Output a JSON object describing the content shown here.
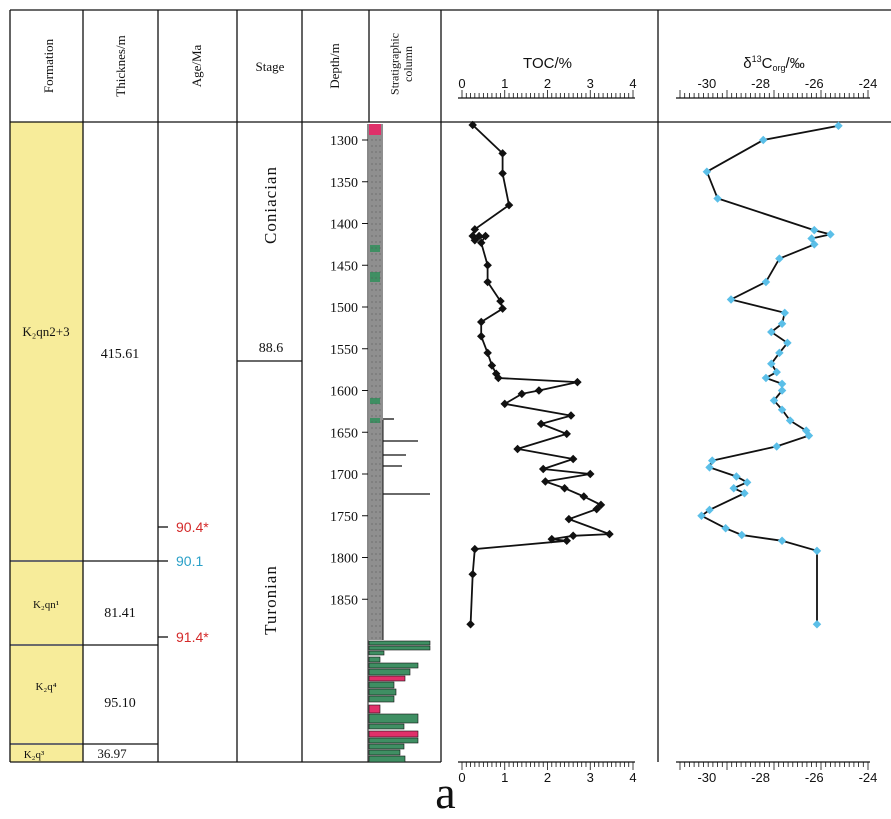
{
  "figure_label": "a",
  "headers": {
    "formation": "Formation",
    "thickness": "Thicknes/m",
    "age": "Age/Ma",
    "stage": "Stage",
    "depth": "Depth/m",
    "column": "Stratigraphic column"
  },
  "formations": [
    {
      "name": "K₂qn2+3",
      "thickness": "415.61"
    },
    {
      "name": "K₂qn¹",
      "thickness": "81.41"
    },
    {
      "name": "K₂q⁴",
      "thickness": "95.10"
    },
    {
      "name": "K₂q³",
      "thickness": "36.97"
    }
  ],
  "ages": [
    {
      "label": "90.4*",
      "color": "#d42a2a"
    },
    {
      "label": "90.1",
      "color": "#2aa0c8"
    },
    {
      "label": "91.4*",
      "color": "#d42a2a"
    }
  ],
  "stages": {
    "upper": "Coniacian",
    "boundary_age": "88.6",
    "lower": "Turonian"
  },
  "colors": {
    "formation_fill": "#f7ec9a",
    "shale": "#8f8f8f",
    "siltstone": "#3f8f63",
    "red_mudstone": "#e0306a",
    "toc_line": "#111111",
    "d13c_marker": "#5bbfe8"
  },
  "chart_data": [
    {
      "type": "line",
      "title": "TOC/%",
      "xlabel": "TOC/%",
      "ylabel": "Depth/m",
      "xlim": [
        0,
        4
      ],
      "ylim": [
        1880,
        1285
      ],
      "x_ticks": [
        "0",
        "1",
        "2",
        "3",
        "4"
      ],
      "y_ticks": [
        "1300",
        "1350",
        "1400",
        "1450",
        "1500",
        "1550",
        "1600",
        "1650",
        "1700",
        "1750",
        "1800",
        "1850"
      ],
      "series": [
        {
          "points": [
            [
              0.25,
              1282
            ],
            [
              0.95,
              1316
            ],
            [
              0.95,
              1340
            ],
            [
              1.1,
              1378
            ],
            [
              0.3,
              1407
            ],
            [
              0.25,
              1415
            ],
            [
              0.4,
              1415
            ],
            [
              0.3,
              1420
            ],
            [
              0.55,
              1415
            ],
            [
              0.45,
              1423
            ],
            [
              0.6,
              1450
            ],
            [
              0.6,
              1470
            ],
            [
              0.9,
              1493
            ],
            [
              0.95,
              1502
            ],
            [
              0.45,
              1518
            ],
            [
              0.45,
              1535
            ],
            [
              0.6,
              1555
            ],
            [
              0.7,
              1570
            ],
            [
              0.8,
              1580
            ],
            [
              0.85,
              1585
            ],
            [
              2.7,
              1590
            ],
            [
              1.8,
              1600
            ],
            [
              1.4,
              1604
            ],
            [
              1.0,
              1616
            ],
            [
              2.55,
              1630
            ],
            [
              1.85,
              1640
            ],
            [
              2.45,
              1652
            ],
            [
              1.3,
              1670
            ],
            [
              2.6,
              1682
            ],
            [
              1.9,
              1694
            ],
            [
              3.0,
              1700
            ],
            [
              1.95,
              1709
            ],
            [
              2.4,
              1717
            ],
            [
              2.85,
              1727
            ],
            [
              3.25,
              1737
            ],
            [
              3.15,
              1742
            ],
            [
              2.5,
              1754
            ],
            [
              3.45,
              1772
            ],
            [
              2.6,
              1774
            ],
            [
              2.1,
              1778
            ],
            [
              2.45,
              1780
            ],
            [
              0.3,
              1790
            ],
            [
              0.25,
              1820
            ],
            [
              0.2,
              1880
            ]
          ]
        }
      ]
    },
    {
      "type": "line",
      "title": "δ13Corg/‰",
      "xlabel": "δ13Corg/‰",
      "ylabel": "Depth/m",
      "xlim": [
        -31,
        -24
      ],
      "ylim": [
        1880,
        1285
      ],
      "x_ticks": [
        "-30",
        "-28",
        "-26",
        "-24"
      ],
      "series": [
        {
          "points": [
            [
              -25.1,
              1283
            ],
            [
              -27.9,
              1300
            ],
            [
              -30.0,
              1338
            ],
            [
              -29.6,
              1370
            ],
            [
              -26.0,
              1408
            ],
            [
              -25.4,
              1413
            ],
            [
              -26.1,
              1418
            ],
            [
              -26.0,
              1425
            ],
            [
              -27.3,
              1442
            ],
            [
              -27.8,
              1470
            ],
            [
              -29.1,
              1491
            ],
            [
              -27.1,
              1507
            ],
            [
              -27.2,
              1520
            ],
            [
              -27.6,
              1530
            ],
            [
              -27.0,
              1543
            ],
            [
              -27.3,
              1555
            ],
            [
              -27.6,
              1568
            ],
            [
              -27.4,
              1578
            ],
            [
              -27.8,
              1585
            ],
            [
              -27.2,
              1592
            ],
            [
              -27.2,
              1600
            ],
            [
              -27.5,
              1612
            ],
            [
              -27.2,
              1623
            ],
            [
              -26.9,
              1636
            ],
            [
              -26.3,
              1648
            ],
            [
              -26.2,
              1654
            ],
            [
              -27.4,
              1667
            ],
            [
              -29.8,
              1684
            ],
            [
              -29.9,
              1692
            ],
            [
              -28.9,
              1703
            ],
            [
              -28.5,
              1710
            ],
            [
              -29.0,
              1717
            ],
            [
              -28.6,
              1723
            ],
            [
              -29.9,
              1743
            ],
            [
              -30.2,
              1750
            ],
            [
              -29.3,
              1765
            ],
            [
              -28.7,
              1773
            ],
            [
              -27.2,
              1780
            ],
            [
              -25.9,
              1792
            ],
            [
              -25.9,
              1880
            ]
          ]
        }
      ]
    }
  ]
}
